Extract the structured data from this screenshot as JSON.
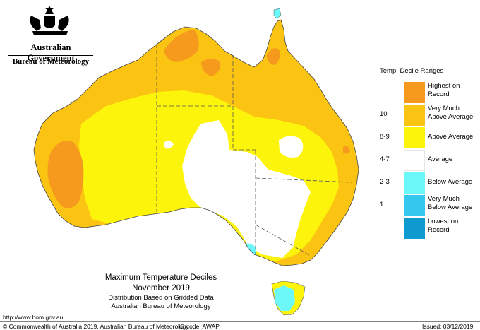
{
  "header": {
    "government": "Australian Government",
    "bureau": "Bureau of Meteorology"
  },
  "map": {
    "title": "Maximum Temperature Deciles",
    "period": "November 2019",
    "subtitle_1": "Distribution Based on Gridded Data",
    "subtitle_2": "Australian Bureau of Meteorology"
  },
  "legend": {
    "title": "Temp. Decile Ranges",
    "items": [
      {
        "code": "",
        "label_1": "Highest on",
        "label_2": "Record",
        "color": "#f59a1c"
      },
      {
        "code": "10",
        "label_1": "Very Much",
        "label_2": "Above Average",
        "color": "#fcc412"
      },
      {
        "code": "8-9",
        "label_1": "Above Average",
        "label_2": "",
        "color": "#fcf40a"
      },
      {
        "code": "4-7",
        "label_1": "Average",
        "label_2": "",
        "color": "#ffffff"
      },
      {
        "code": "2-3",
        "label_1": "Below Average",
        "label_2": "",
        "color": "#6cf8f8"
      },
      {
        "code": "1",
        "label_1": "Very Much",
        "label_2": "Below Average",
        "color": "#35c8ee"
      },
      {
        "code": "",
        "label_1": "Lowest on",
        "label_2": "Record",
        "color": "#0f9bd0"
      }
    ]
  },
  "footer": {
    "url": "http://www.bom.gov.au",
    "copyright": "© Commonwealth of Australia 2019, Australian Bureau of Meteorology",
    "id_code": "ID code: AWAP",
    "issued": "Issued: 03/12/2019"
  }
}
